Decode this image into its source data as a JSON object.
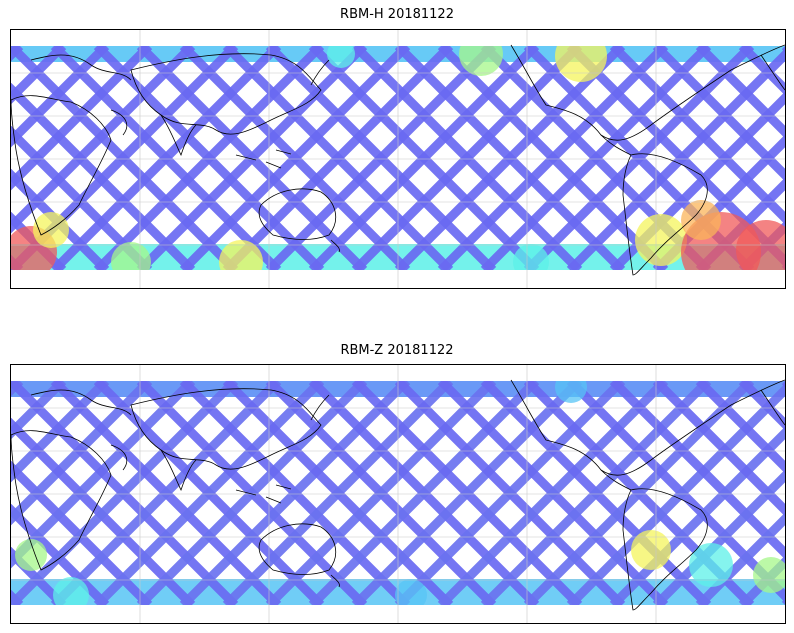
{
  "figure": {
    "panels": [
      {
        "title": "RBM-H 20181122",
        "variable": "RBM-H",
        "date": "20181122"
      },
      {
        "title": "RBM-Z 20181122",
        "variable": "RBM-Z",
        "date": "20181122"
      }
    ],
    "colormap": [
      "#5b5cf0",
      "#5a8ef5",
      "#57c4f5",
      "#5cf0e8",
      "#a6f78a",
      "#f4f45c",
      "#fbb45a",
      "#f05a5a"
    ],
    "track_color_default": "#6a6af2",
    "land_outline_color": "#000000",
    "grid_color": "#c8c8c8"
  }
}
